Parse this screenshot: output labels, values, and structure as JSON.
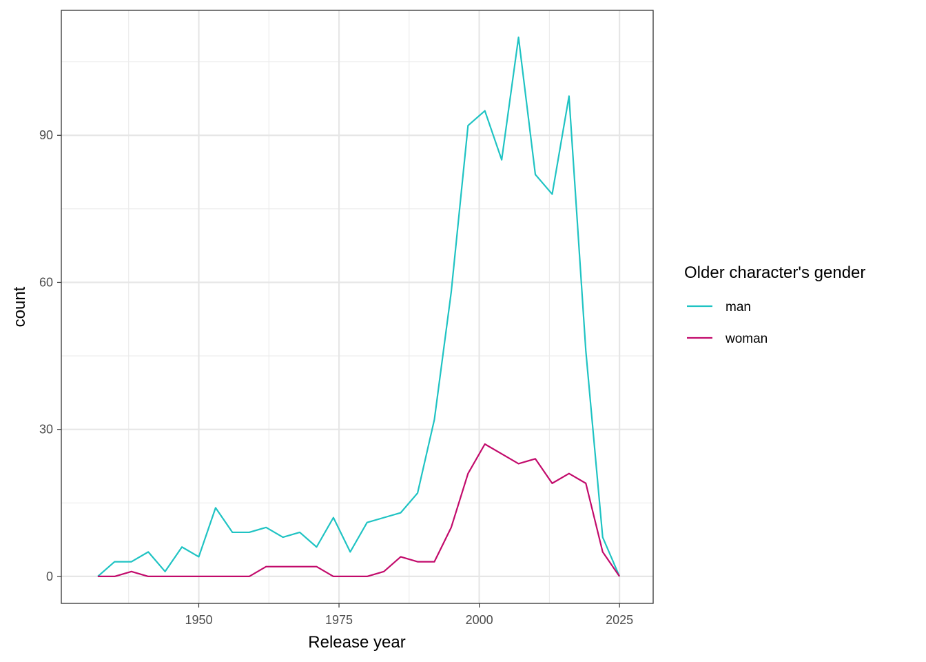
{
  "chart_data": {
    "type": "line",
    "xlabel": "Release year",
    "ylabel": "count",
    "xlim": [
      1925.5,
      2031
    ],
    "ylim": [
      -5.5,
      115.5
    ],
    "x_ticks": [
      1950,
      1975,
      2000,
      2025
    ],
    "x_minor": [
      1937.5,
      1962.5,
      1987.5,
      2012.5
    ],
    "y_ticks": [
      0,
      30,
      60,
      90
    ],
    "y_minor": [
      15,
      45,
      75,
      105
    ],
    "grid": true,
    "legend": {
      "title": "Older character's gender",
      "placement": "right"
    },
    "x": [
      1932,
      1935,
      1938,
      1941,
      1944,
      1947,
      1950,
      1953,
      1956,
      1959,
      1962,
      1965,
      1968,
      1971,
      1974,
      1977,
      1980,
      1983,
      1986,
      1989,
      1992,
      1995,
      1998,
      2001,
      2004,
      2007,
      2010,
      2013,
      2016,
      2019,
      2022,
      2025
    ],
    "series": [
      {
        "name": "man",
        "color": "#1fc3c3",
        "values": [
          0,
          3,
          3,
          5,
          1,
          6,
          4,
          14,
          9,
          9,
          10,
          8,
          9,
          6,
          12,
          5,
          11,
          12,
          13,
          17,
          32,
          58,
          92,
          95,
          85,
          110,
          82,
          78,
          98,
          46,
          8,
          0
        ]
      },
      {
        "name": "woman",
        "color": "#c20a6b",
        "values": [
          0,
          0,
          1,
          0,
          0,
          0,
          0,
          0,
          0,
          0,
          2,
          2,
          2,
          2,
          0,
          0,
          0,
          1,
          4,
          3,
          3,
          10,
          21,
          27,
          25,
          23,
          24,
          19,
          21,
          19,
          5,
          0
        ]
      }
    ]
  }
}
